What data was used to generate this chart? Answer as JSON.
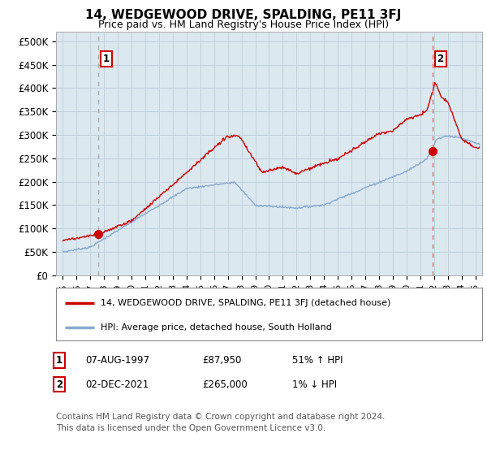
{
  "title": "14, WEDGEWOOD DRIVE, SPALDING, PE11 3FJ",
  "subtitle": "Price paid vs. HM Land Registry's House Price Index (HPI)",
  "ylabel_ticks": [
    "£0",
    "£50K",
    "£100K",
    "£150K",
    "£200K",
    "£250K",
    "£300K",
    "£350K",
    "£400K",
    "£450K",
    "£500K"
  ],
  "ytick_values": [
    0,
    50000,
    100000,
    150000,
    200000,
    250000,
    300000,
    350000,
    400000,
    450000,
    500000
  ],
  "ylim": [
    0,
    520000
  ],
  "xlim_start": 1994.5,
  "xlim_end": 2025.5,
  "sale1_x": 1997.6,
  "sale1_price": 87950,
  "sale2_x": 2021.92,
  "sale2_price": 265000,
  "legend_line1": "14, WEDGEWOOD DRIVE, SPALDING, PE11 3FJ (detached house)",
  "legend_line2": "HPI: Average price, detached house, South Holland",
  "annotation1_date": "07-AUG-1997",
  "annotation1_price": "£87,950",
  "annotation1_pct": "51% ↑ HPI",
  "annotation2_date": "02-DEC-2021",
  "annotation2_price": "£265,000",
  "annotation2_pct": "1% ↓ HPI",
  "footer": "Contains HM Land Registry data © Crown copyright and database right 2024.\nThis data is licensed under the Open Government Licence v3.0.",
  "bg_color": "#ffffff",
  "plot_bg_color": "#dce8f0",
  "red_line_color": "#cc0000",
  "blue_line_color": "#88aace",
  "sale1_vline_color": "#aaaaaa",
  "sale2_vline_color": "#ee6666",
  "grid_color": "#c0d0dc",
  "box_color": "#cc0000",
  "title_fontsize": 11,
  "subtitle_fontsize": 9
}
